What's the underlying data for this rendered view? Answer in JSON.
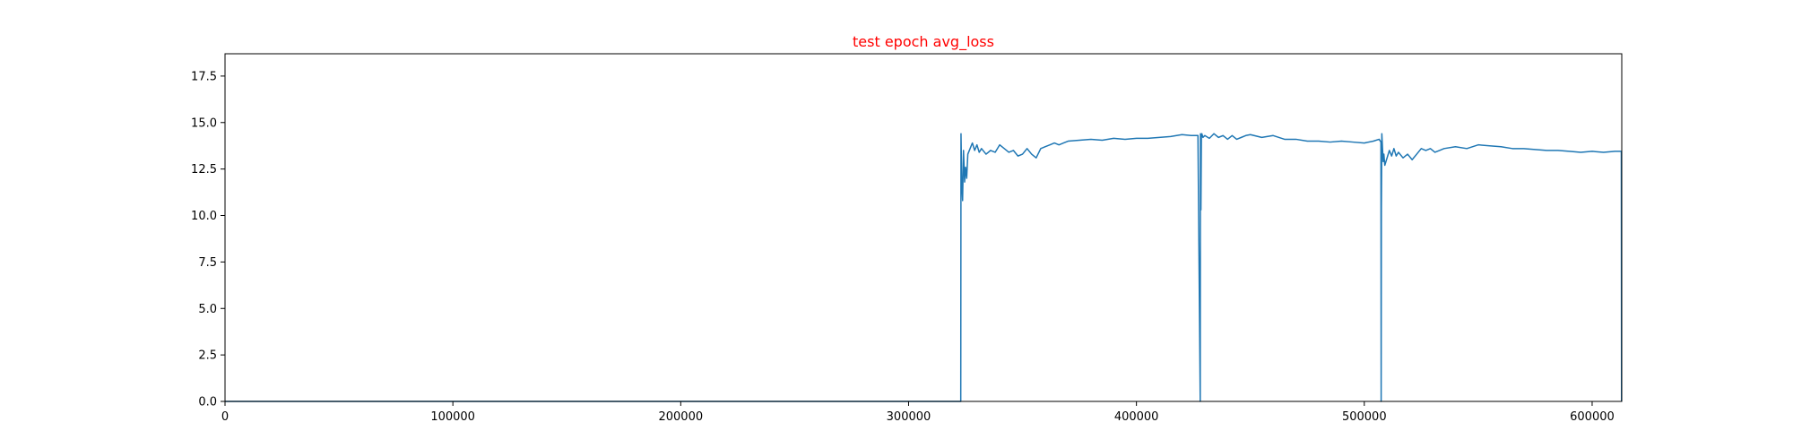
{
  "chart_data": {
    "type": "line",
    "title": "test epoch avg_loss",
    "title_color": "#ff0000",
    "line_color": "#1f77b4",
    "xlabel": "",
    "ylabel": "",
    "xlim": [
      0,
      613000
    ],
    "ylim": [
      0,
      18.7
    ],
    "grid": false,
    "legend": false,
    "x_ticks": [
      0,
      100000,
      200000,
      300000,
      400000,
      500000,
      600000
    ],
    "x_tick_labels": [
      "0",
      "100000",
      "200000",
      "300000",
      "400000",
      "500000",
      "600000"
    ],
    "y_ticks": [
      0,
      2.5,
      5,
      7.5,
      10,
      12.5,
      15,
      17.5
    ],
    "y_tick_labels": [
      "0.0",
      "2.5",
      "5.0",
      "7.5",
      "10.0",
      "12.5",
      "15.0",
      "17.5"
    ],
    "series": [
      {
        "x": [
          0,
          322900,
          323000,
          323300,
          323700,
          324100,
          324600,
          325000,
          325500,
          326000,
          327000,
          328000,
          329000,
          330000,
          331000,
          332000,
          334000,
          336000,
          338000,
          340000,
          342000,
          344000,
          346000,
          348000,
          350000,
          352000,
          354000,
          356000,
          358000,
          360000,
          362000,
          364000,
          366000,
          368000,
          370000,
          375000,
          380000,
          385000,
          390000,
          395000,
          400000,
          405000,
          410000,
          415000,
          420000,
          424000,
          427000,
          428000,
          428100,
          428300,
          428500,
          428700,
          429200,
          430000,
          432000,
          434000,
          436000,
          438000,
          440000,
          442000,
          444000,
          446000,
          448000,
          450000,
          455000,
          460000,
          465000,
          470000,
          475000,
          480000,
          485000,
          490000,
          495000,
          500000,
          504000,
          506500,
          507300,
          507400,
          507500,
          507700,
          508000,
          508300,
          508600,
          509000,
          510000,
          511000,
          512000,
          513000,
          514000,
          515000,
          517000,
          519000,
          521000,
          523000,
          525000,
          527000,
          529000,
          531000,
          533000,
          535000,
          540000,
          545000,
          550000,
          555000,
          560000,
          565000,
          570000,
          575000,
          580000,
          585000,
          590000,
          595000,
          600000,
          605000,
          610000,
          612800,
          612900
        ],
        "y": [
          0,
          0,
          14.4,
          12.0,
          10.8,
          13.5,
          11.8,
          12.6,
          12.0,
          13.3,
          13.6,
          13.9,
          13.5,
          13.8,
          13.4,
          13.6,
          13.3,
          13.5,
          13.4,
          13.8,
          13.6,
          13.4,
          13.5,
          13.2,
          13.3,
          13.6,
          13.3,
          13.1,
          13.6,
          13.7,
          13.8,
          13.9,
          13.8,
          13.9,
          14.0,
          14.05,
          14.1,
          14.05,
          14.15,
          14.1,
          14.15,
          14.15,
          14.2,
          14.25,
          14.35,
          14.3,
          14.3,
          0,
          14.4,
          10.3,
          14.2,
          14.4,
          14.2,
          14.3,
          14.15,
          14.4,
          14.2,
          14.3,
          14.1,
          14.3,
          14.1,
          14.2,
          14.3,
          14.35,
          14.2,
          14.3,
          14.1,
          14.1,
          14.0,
          14.0,
          13.95,
          14.0,
          13.95,
          13.9,
          14.0,
          14.1,
          13.95,
          0,
          10.3,
          14.4,
          13.6,
          12.9,
          13.3,
          12.7,
          13.1,
          13.5,
          13.2,
          13.6,
          13.2,
          13.4,
          13.1,
          13.3,
          13.0,
          13.3,
          13.6,
          13.5,
          13.6,
          13.4,
          13.5,
          13.6,
          13.7,
          13.6,
          13.8,
          13.75,
          13.7,
          13.6,
          13.6,
          13.55,
          13.5,
          13.5,
          13.45,
          13.4,
          13.45,
          13.4,
          13.45,
          13.45,
          0
        ]
      }
    ]
  }
}
